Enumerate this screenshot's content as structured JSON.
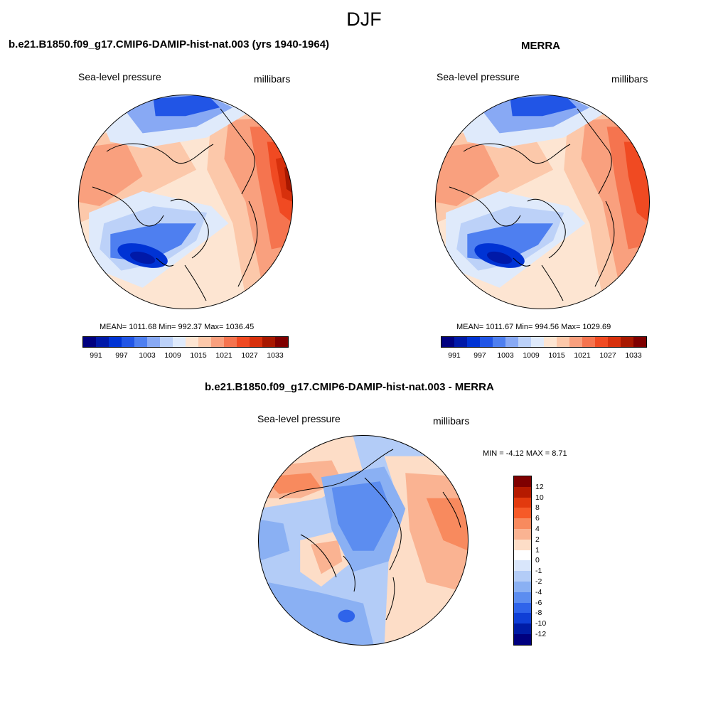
{
  "figure": {
    "season": "DJF"
  },
  "panels": [
    {
      "title": "b.e21.B1850.f09_g17.CMIP6-DAMIP-hist-nat.003 (yrs 1940-1964)",
      "left_label": "Sea-level pressure",
      "right_label": "millibars",
      "stats": "MEAN= 1011.68  Min= 992.37  Max= 1036.45",
      "colorbar_ticks": [
        "991",
        "997",
        "1003",
        "1009",
        "1015",
        "1021",
        "1027",
        "1033"
      ]
    },
    {
      "title": "MERRA",
      "left_label": "Sea-level pressure",
      "right_label": "millibars",
      "stats": "MEAN= 1011.67  Min= 994.56  Max= 1029.69",
      "colorbar_ticks": [
        "991",
        "997",
        "1003",
        "1009",
        "1015",
        "1021",
        "1027",
        "1033"
      ]
    },
    {
      "title": "b.e21.B1850.f09_g17.CMIP6-DAMIP-hist-nat.003 - MERRA",
      "left_label": "Sea-level pressure",
      "right_label": "millibars",
      "stats": "MIN =  -4.12 MAX =   8.71",
      "colorbar_ticks": [
        "12",
        "10",
        "8",
        "6",
        "4",
        "2",
        "1",
        "0",
        "-1",
        "-2",
        "-4",
        "-6",
        "-8",
        "-10",
        "-12"
      ]
    }
  ],
  "colors": {
    "sequential": [
      "#00007f",
      "#0019a8",
      "#0033d4",
      "#2155e6",
      "#4e7ff0",
      "#88a9f4",
      "#bcd1f8",
      "#dfeafb",
      "#fde5d2",
      "#fcc8aa",
      "#f9a07e",
      "#f5744f",
      "#f04a22",
      "#d7300c",
      "#a81800",
      "#7f0000"
    ],
    "diff": [
      "#7f0000",
      "#b51a00",
      "#e23a0e",
      "#f65a28",
      "#f88a5e",
      "#fab392",
      "#fdddc7",
      "#ffffff",
      "#d9e6fb",
      "#b3ccf7",
      "#8ab0f3",
      "#5c8df0",
      "#2f64ea",
      "#0f3fd6",
      "#001ca6",
      "#00007f"
    ],
    "coastline": "#000000"
  }
}
